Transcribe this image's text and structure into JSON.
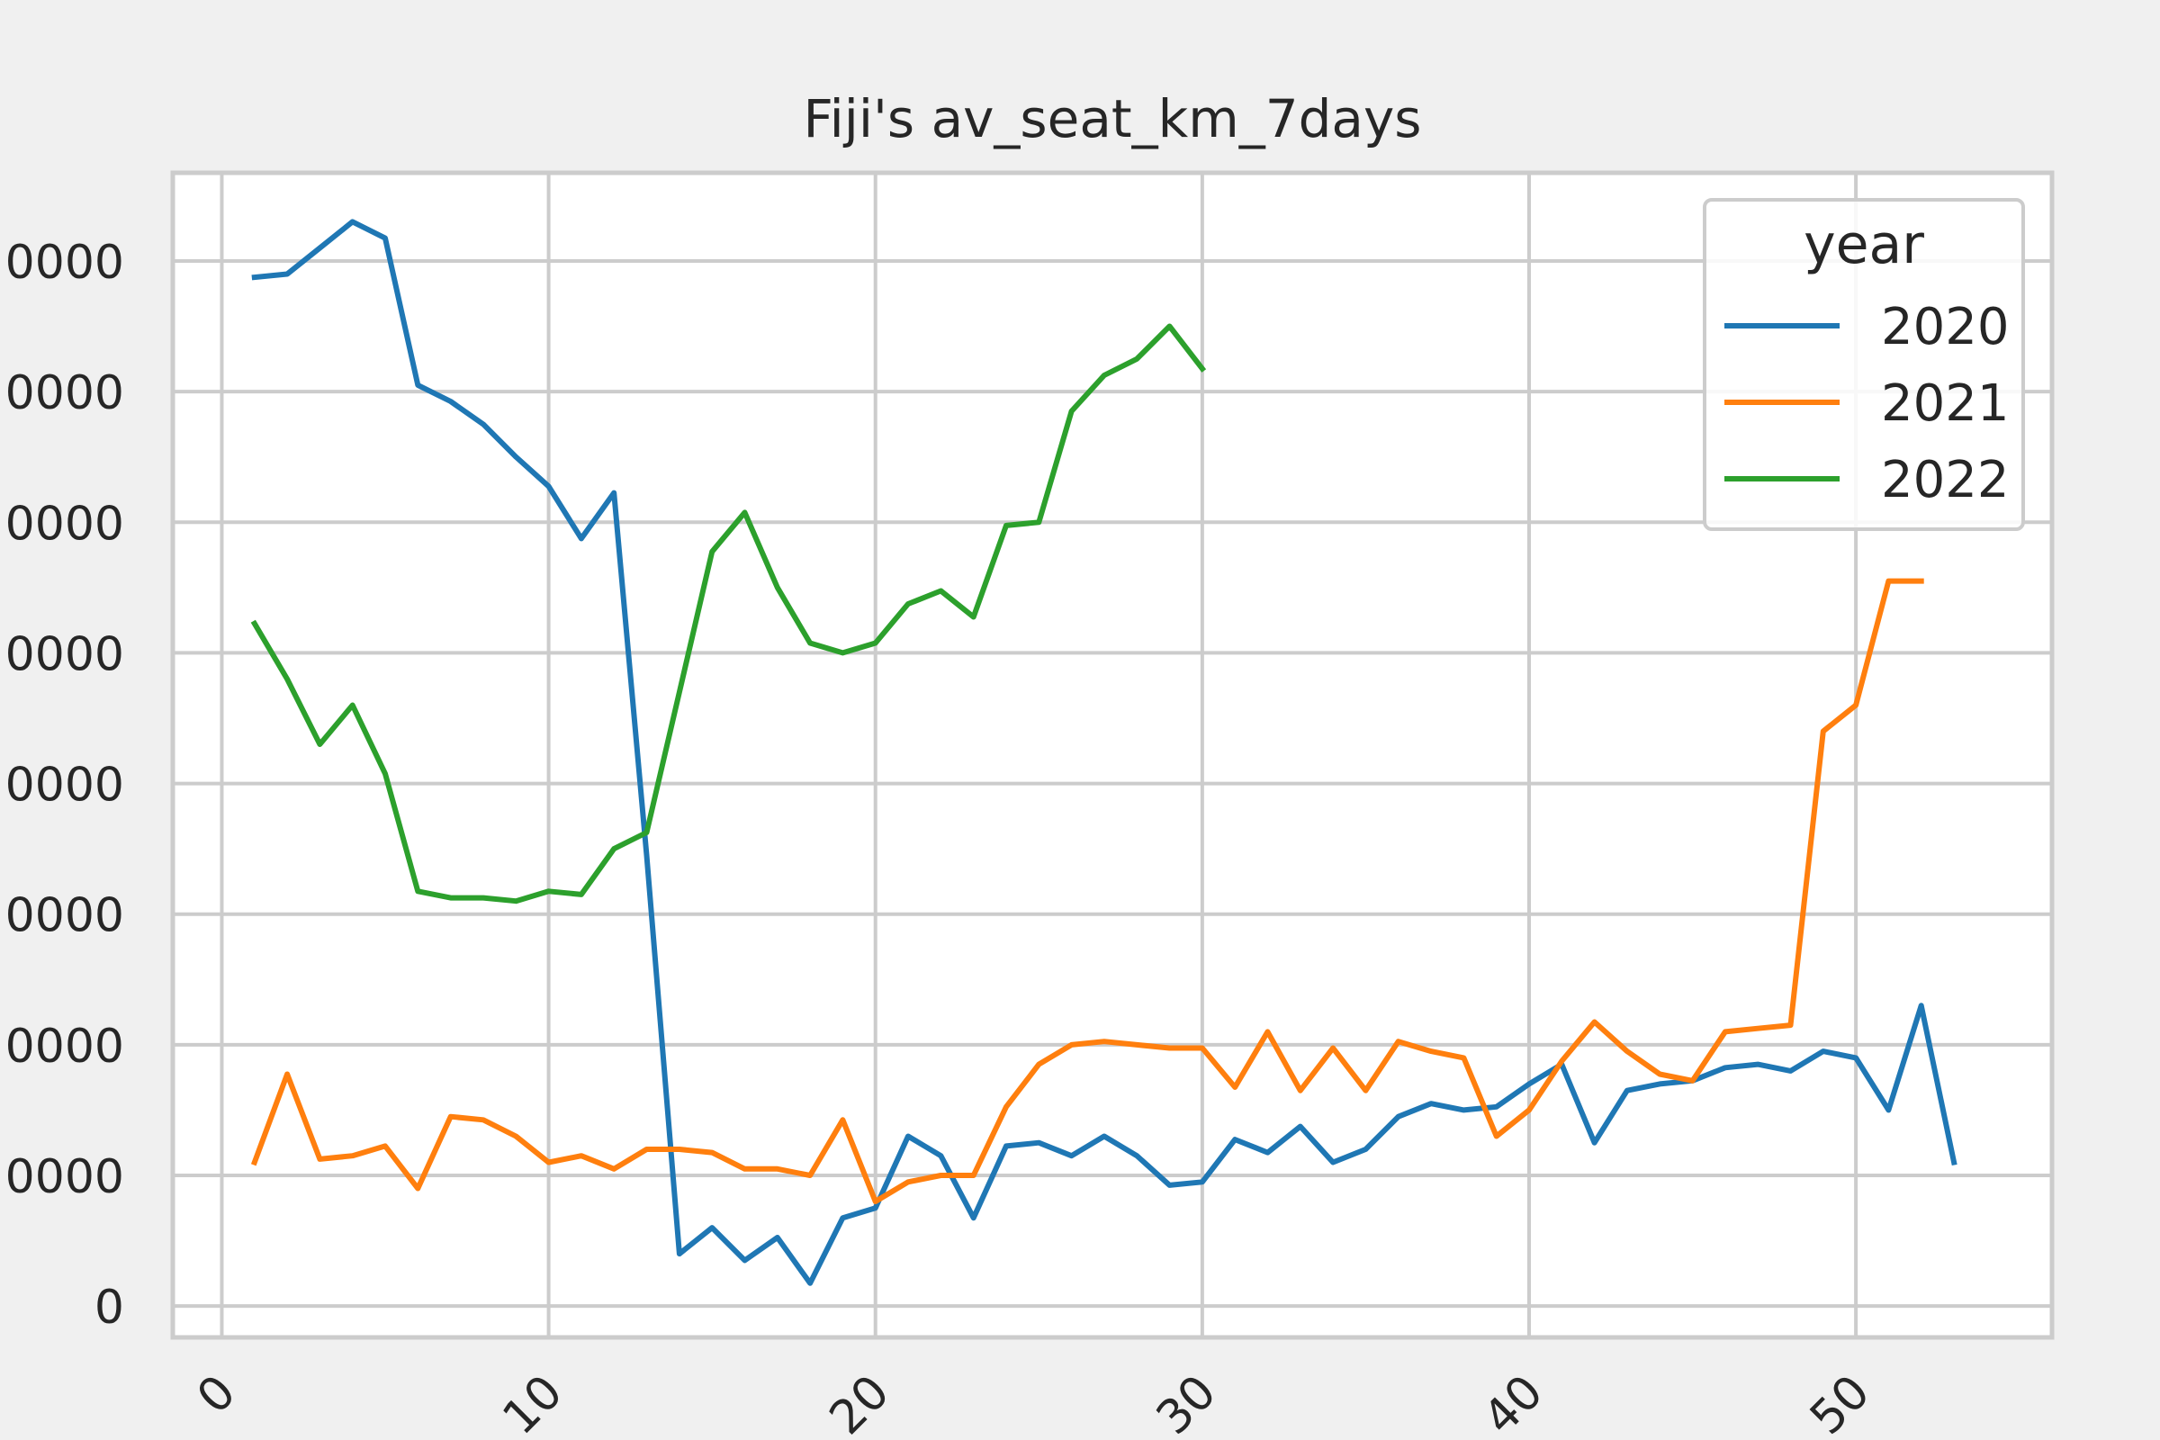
{
  "chart_data": {
    "type": "line",
    "title": "Fiji's av_seat_km_7days",
    "xlabel": "",
    "ylabel": "",
    "xlim": [
      -1.5,
      56
    ],
    "ylim": [
      -4800,
      173500
    ],
    "x_ticks": [
      0,
      10,
      20,
      30,
      40,
      50
    ],
    "x_tick_labels": [
      "0",
      "10",
      "20",
      "30",
      "40",
      "50"
    ],
    "y_ticks": [
      0,
      20000,
      40000,
      60000,
      80000,
      100000,
      120000,
      140000,
      160000
    ],
    "y_tick_labels": [
      "0",
      "0000",
      "0000",
      "0000",
      "0000",
      "0000",
      "0000",
      "0000",
      "0000"
    ],
    "grid": true,
    "legend": {
      "title": "year",
      "position": "top-right"
    },
    "series": [
      {
        "name": "2020",
        "color": "#1f77b4",
        "x": [
          1,
          2,
          3,
          4,
          5,
          6,
          7,
          8,
          9,
          10,
          11,
          12,
          13,
          14,
          15,
          16,
          17,
          18,
          19,
          20,
          21,
          22,
          23,
          24,
          25,
          26,
          27,
          28,
          29,
          30,
          31,
          32,
          33,
          34,
          35,
          36,
          37,
          38,
          39,
          40,
          41,
          42,
          43,
          44,
          45,
          46,
          47,
          48,
          49,
          50,
          51,
          52,
          53
        ],
        "y": [
          157500,
          158000,
          162000,
          166000,
          163500,
          141000,
          138500,
          135000,
          130000,
          125500,
          117500,
          124500,
          69000,
          8000,
          12000,
          7000,
          10500,
          3500,
          13500,
          15000,
          26000,
          23000,
          13500,
          24500,
          25000,
          23000,
          26000,
          23000,
          18500,
          19000,
          25500,
          23500,
          27500,
          22000,
          24000,
          29000,
          31000,
          30000,
          30500,
          34000,
          37000,
          25000,
          33000,
          34000,
          34500,
          36500,
          37000,
          36000,
          39000,
          38000,
          30000,
          46000,
          22000
        ]
      },
      {
        "name": "2021",
        "color": "#ff7f0e",
        "x": [
          1,
          2,
          3,
          4,
          5,
          6,
          7,
          8,
          9,
          10,
          11,
          12,
          13,
          14,
          15,
          16,
          17,
          18,
          19,
          20,
          21,
          22,
          23,
          24,
          25,
          26,
          27,
          28,
          29,
          30,
          31,
          32,
          33,
          34,
          35,
          36,
          37,
          38,
          39,
          40,
          41,
          42,
          43,
          44,
          45,
          46,
          47,
          48,
          49,
          50,
          51,
          52
        ],
        "y": [
          22000,
          35500,
          22500,
          23000,
          24500,
          18000,
          29000,
          28500,
          26000,
          22000,
          23000,
          21000,
          24000,
          24000,
          23500,
          21000,
          21000,
          20000,
          28500,
          16000,
          19000,
          20000,
          20000,
          30500,
          37000,
          40000,
          40500,
          40000,
          39500,
          39500,
          33500,
          42000,
          33000,
          39500,
          33000,
          40500,
          39000,
          38000,
          26000,
          30000,
          37500,
          43500,
          39000,
          35500,
          34500,
          42000,
          42500,
          43000,
          88000,
          92000,
          111000,
          111000
        ]
      },
      {
        "name": "2022",
        "color": "#2 ca02c",
        "x": [
          1,
          2,
          3,
          4,
          5,
          6,
          7,
          8,
          9,
          10,
          11,
          12,
          13,
          14,
          15,
          16,
          17,
          18,
          19,
          20,
          21,
          22,
          23,
          24,
          25,
          26,
          27,
          28,
          29,
          30
        ],
        "y": [
          104500,
          96000,
          86000,
          92000,
          81500,
          63500,
          62500,
          62500,
          62000,
          63500,
          63000,
          70000,
          72500,
          94000,
          115500,
          121500,
          110000,
          101500,
          100000,
          101500,
          107500,
          109500,
          105500,
          119500,
          120000,
          137000,
          142500,
          145000,
          150000,
          143500
        ]
      }
    ]
  }
}
